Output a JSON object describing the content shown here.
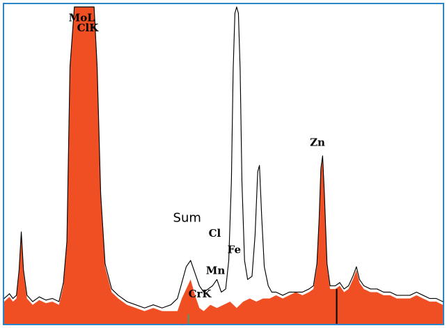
{
  "chart_data": {
    "type": "area",
    "x_range": [
      0,
      100
    ],
    "y_range": [
      0,
      100
    ],
    "colors": {
      "border": "#2a84c7",
      "fill": "#ef4f23",
      "line": "#000000",
      "marker_green": "#4f9a6a",
      "marker_black": "#000000"
    },
    "filled_series": {
      "name": "",
      "points": [
        [
          0,
          7
        ],
        [
          1.2,
          8.5
        ],
        [
          2,
          7
        ],
        [
          2.8,
          8
        ],
        [
          3.4,
          16
        ],
        [
          3.9,
          28
        ],
        [
          4.4,
          16
        ],
        [
          5.2,
          8
        ],
        [
          6.5,
          6
        ],
        [
          8,
          7.5
        ],
        [
          9.5,
          6.5
        ],
        [
          11,
          7
        ],
        [
          12.5,
          6
        ],
        [
          13.5,
          12
        ],
        [
          14.3,
          25
        ],
        [
          15,
          80
        ],
        [
          16,
          100
        ],
        [
          20.5,
          100
        ],
        [
          21.2,
          80
        ],
        [
          22,
          40
        ],
        [
          23,
          18
        ],
        [
          24.5,
          10
        ],
        [
          26,
          8
        ],
        [
          28,
          6
        ],
        [
          30,
          5
        ],
        [
          32,
          4
        ],
        [
          34,
          5
        ],
        [
          36,
          4
        ],
        [
          38,
          4
        ],
        [
          39.5,
          4
        ],
        [
          40.5,
          8
        ],
        [
          41.5,
          11
        ],
        [
          42.5,
          14
        ],
        [
          43.5,
          9
        ],
        [
          44.5,
          5
        ],
        [
          45.5,
          4
        ],
        [
          47,
          6
        ],
        [
          48.5,
          5
        ],
        [
          50,
          6
        ],
        [
          51.5,
          7
        ],
        [
          53,
          5
        ],
        [
          54.5,
          7
        ],
        [
          56,
          8
        ],
        [
          57.5,
          7
        ],
        [
          59,
          8
        ],
        [
          60.5,
          8
        ],
        [
          62,
          9
        ],
        [
          63.5,
          8
        ],
        [
          65,
          9
        ],
        [
          66.5,
          10
        ],
        [
          68,
          9
        ],
        [
          69.5,
          10
        ],
        [
          70.5,
          11
        ],
        [
          71.3,
          18
        ],
        [
          71.8,
          32
        ],
        [
          72.2,
          48
        ],
        [
          72.6,
          52
        ],
        [
          73,
          40
        ],
        [
          73.6,
          18
        ],
        [
          74.3,
          11
        ],
        [
          75.5,
          11
        ],
        [
          76.5,
          12
        ],
        [
          77.5,
          10
        ],
        [
          78.5,
          11
        ],
        [
          79.5,
          14
        ],
        [
          80.3,
          17
        ],
        [
          81,
          13
        ],
        [
          82,
          11
        ],
        [
          83.5,
          10
        ],
        [
          85,
          10
        ],
        [
          86.5,
          9
        ],
        [
          88,
          9
        ],
        [
          89.5,
          8
        ],
        [
          91,
          8
        ],
        [
          92.5,
          8
        ],
        [
          94,
          9
        ],
        [
          95.5,
          8
        ],
        [
          97,
          7
        ],
        [
          98.5,
          7
        ],
        [
          100,
          6
        ]
      ]
    },
    "outline_series": {
      "name": "",
      "points": [
        [
          0,
          8
        ],
        [
          1.2,
          9.5
        ],
        [
          2,
          8
        ],
        [
          2.8,
          9
        ],
        [
          3.4,
          17
        ],
        [
          3.9,
          29
        ],
        [
          4.4,
          17
        ],
        [
          5.2,
          9
        ],
        [
          6.5,
          7
        ],
        [
          8,
          8.5
        ],
        [
          9.5,
          7.5
        ],
        [
          11,
          8
        ],
        [
          12.5,
          7
        ],
        [
          13.5,
          13
        ],
        [
          14.3,
          26
        ],
        [
          15,
          81
        ],
        [
          16,
          100
        ],
        [
          20.5,
          100
        ],
        [
          21.2,
          81
        ],
        [
          22,
          41
        ],
        [
          23,
          19
        ],
        [
          24.5,
          11
        ],
        [
          26,
          9
        ],
        [
          28,
          7
        ],
        [
          30,
          6
        ],
        [
          32,
          5
        ],
        [
          34,
          6
        ],
        [
          36,
          5
        ],
        [
          38,
          6
        ],
        [
          39.5,
          8
        ],
        [
          40.5,
          13
        ],
        [
          41.5,
          18
        ],
        [
          42.5,
          20
        ],
        [
          43.5,
          16
        ],
        [
          44.5,
          12
        ],
        [
          45.5,
          10
        ],
        [
          46.5,
          11
        ],
        [
          47.5,
          12
        ],
        [
          48.5,
          14
        ],
        [
          49.5,
          10
        ],
        [
          50.5,
          11
        ],
        [
          51.2,
          20
        ],
        [
          51.8,
          45
        ],
        [
          52.2,
          80
        ],
        [
          52.6,
          98
        ],
        [
          53,
          100
        ],
        [
          53.4,
          98
        ],
        [
          53.8,
          80
        ],
        [
          54.2,
          45
        ],
        [
          54.8,
          20
        ],
        [
          55.5,
          14
        ],
        [
          56.5,
          15
        ],
        [
          57.2,
          28
        ],
        [
          57.8,
          48
        ],
        [
          58.2,
          50
        ],
        [
          58.7,
          34
        ],
        [
          59.3,
          18
        ],
        [
          60.2,
          12
        ],
        [
          61,
          10
        ],
        [
          62,
          10
        ],
        [
          63.5,
          9
        ],
        [
          65,
          10
        ],
        [
          66.5,
          10
        ],
        [
          68,
          10
        ],
        [
          69.5,
          11
        ],
        [
          70.5,
          12
        ],
        [
          71.3,
          19
        ],
        [
          71.8,
          33
        ],
        [
          72.2,
          49
        ],
        [
          72.6,
          53
        ],
        [
          73,
          41
        ],
        [
          73.6,
          19
        ],
        [
          74.3,
          12
        ],
        [
          75.5,
          12
        ],
        [
          76.5,
          13
        ],
        [
          77.5,
          11
        ],
        [
          78.5,
          12
        ],
        [
          79.5,
          15
        ],
        [
          80.3,
          18
        ],
        [
          81,
          14
        ],
        [
          82,
          12
        ],
        [
          83.5,
          11
        ],
        [
          85,
          11
        ],
        [
          86.5,
          10
        ],
        [
          88,
          10
        ],
        [
          89.5,
          9
        ],
        [
          91,
          9
        ],
        [
          92.5,
          9
        ],
        [
          94,
          10
        ],
        [
          95.5,
          9
        ],
        [
          97,
          8
        ],
        [
          98.5,
          8
        ],
        [
          100,
          7
        ]
      ]
    },
    "annotations": [
      {
        "id": "mol",
        "text": "MoL",
        "x": 14.7,
        "y": 95.5,
        "style": "serif"
      },
      {
        "id": "clk",
        "text": "ClK",
        "x": 16.6,
        "y": 92.3,
        "style": "serif"
      },
      {
        "id": "zn",
        "text": "Zn",
        "x": 69.7,
        "y": 56.2,
        "style": "serif"
      },
      {
        "id": "sum",
        "text": "Sum",
        "x": 38.5,
        "y": 32.2,
        "style": "sans"
      },
      {
        "id": "cl",
        "text": "Cl",
        "x": 46.6,
        "y": 27.5,
        "style": "serif"
      },
      {
        "id": "fe",
        "text": "Fe",
        "x": 50.9,
        "y": 22.3,
        "style": "serif"
      },
      {
        "id": "mn",
        "text": "Mn",
        "x": 46.0,
        "y": 15.7,
        "style": "serif"
      },
      {
        "id": "crk",
        "text": "CrK",
        "x": 42.0,
        "y": 8.3,
        "style": "serif"
      }
    ],
    "markers": [
      {
        "id": "green-marker",
        "x": 42.0,
        "from": 0,
        "to": 3,
        "color_key": "marker_green"
      },
      {
        "id": "black-marker",
        "x": 75.8,
        "from": 0,
        "to": 11,
        "color_key": "marker_black"
      }
    ]
  }
}
